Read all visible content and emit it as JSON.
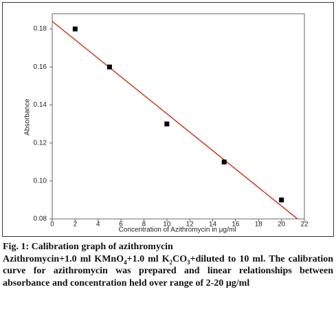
{
  "chart_data": {
    "type": "scatter",
    "x_label": "Concentration of Azithromycin in µg/ml",
    "y_label": "Absorbance",
    "x": [
      2,
      5,
      10,
      15,
      20
    ],
    "values": [
      0.18,
      0.16,
      0.13,
      0.11,
      0.09
    ],
    "color": "#000000",
    "fit_line": {
      "x": [
        0,
        21.4
      ],
      "values": [
        0.184,
        0.08
      ],
      "color": "#cc3a22"
    },
    "xlim": [
      0,
      22
    ],
    "xticks": [
      0,
      2,
      4,
      6,
      8,
      10,
      12,
      14,
      16,
      18,
      20,
      22
    ],
    "ylim": [
      0.08,
      0.188
    ],
    "yticks": [
      0.08,
      {
        "value": 0.1,
        "label": "0.10"
      },
      0.12,
      0.14,
      0.16,
      0.18
    ]
  },
  "caption": {
    "title": "Fig. 1: Calibration graph of azithromycin",
    "parts": [
      "Azithromycin+1.0 ml KMnO",
      "4",
      "+1.0 ml K",
      "2",
      "CO",
      "3",
      "+diluted to 10 ml. The calibration curve for azithromycin was prepared and linear relationships between absorbance and concentration held over range of 2-20 μg/ml"
    ]
  }
}
